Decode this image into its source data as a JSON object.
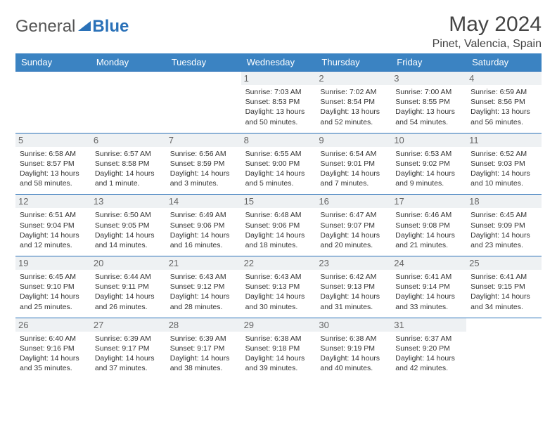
{
  "logo": {
    "part1": "General",
    "part2": "Blue"
  },
  "title": "May 2024",
  "location": "Pinet, Valencia, Spain",
  "colors": {
    "header_bg": "#3b83c2",
    "border": "#2a71b8",
    "dayshade": "#eef1f3"
  },
  "weekdays": [
    "Sunday",
    "Monday",
    "Tuesday",
    "Wednesday",
    "Thursday",
    "Friday",
    "Saturday"
  ],
  "first_weekday_index": 3,
  "days": [
    {
      "n": "1",
      "sr": "Sunrise: 7:03 AM",
      "ss": "Sunset: 8:53 PM",
      "d1": "Daylight: 13 hours",
      "d2": "and 50 minutes."
    },
    {
      "n": "2",
      "sr": "Sunrise: 7:02 AM",
      "ss": "Sunset: 8:54 PM",
      "d1": "Daylight: 13 hours",
      "d2": "and 52 minutes."
    },
    {
      "n": "3",
      "sr": "Sunrise: 7:00 AM",
      "ss": "Sunset: 8:55 PM",
      "d1": "Daylight: 13 hours",
      "d2": "and 54 minutes."
    },
    {
      "n": "4",
      "sr": "Sunrise: 6:59 AM",
      "ss": "Sunset: 8:56 PM",
      "d1": "Daylight: 13 hours",
      "d2": "and 56 minutes."
    },
    {
      "n": "5",
      "sr": "Sunrise: 6:58 AM",
      "ss": "Sunset: 8:57 PM",
      "d1": "Daylight: 13 hours",
      "d2": "and 58 minutes."
    },
    {
      "n": "6",
      "sr": "Sunrise: 6:57 AM",
      "ss": "Sunset: 8:58 PM",
      "d1": "Daylight: 14 hours",
      "d2": "and 1 minute."
    },
    {
      "n": "7",
      "sr": "Sunrise: 6:56 AM",
      "ss": "Sunset: 8:59 PM",
      "d1": "Daylight: 14 hours",
      "d2": "and 3 minutes."
    },
    {
      "n": "8",
      "sr": "Sunrise: 6:55 AM",
      "ss": "Sunset: 9:00 PM",
      "d1": "Daylight: 14 hours",
      "d2": "and 5 minutes."
    },
    {
      "n": "9",
      "sr": "Sunrise: 6:54 AM",
      "ss": "Sunset: 9:01 PM",
      "d1": "Daylight: 14 hours",
      "d2": "and 7 minutes."
    },
    {
      "n": "10",
      "sr": "Sunrise: 6:53 AM",
      "ss": "Sunset: 9:02 PM",
      "d1": "Daylight: 14 hours",
      "d2": "and 9 minutes."
    },
    {
      "n": "11",
      "sr": "Sunrise: 6:52 AM",
      "ss": "Sunset: 9:03 PM",
      "d1": "Daylight: 14 hours",
      "d2": "and 10 minutes."
    },
    {
      "n": "12",
      "sr": "Sunrise: 6:51 AM",
      "ss": "Sunset: 9:04 PM",
      "d1": "Daylight: 14 hours",
      "d2": "and 12 minutes."
    },
    {
      "n": "13",
      "sr": "Sunrise: 6:50 AM",
      "ss": "Sunset: 9:05 PM",
      "d1": "Daylight: 14 hours",
      "d2": "and 14 minutes."
    },
    {
      "n": "14",
      "sr": "Sunrise: 6:49 AM",
      "ss": "Sunset: 9:06 PM",
      "d1": "Daylight: 14 hours",
      "d2": "and 16 minutes."
    },
    {
      "n": "15",
      "sr": "Sunrise: 6:48 AM",
      "ss": "Sunset: 9:06 PM",
      "d1": "Daylight: 14 hours",
      "d2": "and 18 minutes."
    },
    {
      "n": "16",
      "sr": "Sunrise: 6:47 AM",
      "ss": "Sunset: 9:07 PM",
      "d1": "Daylight: 14 hours",
      "d2": "and 20 minutes."
    },
    {
      "n": "17",
      "sr": "Sunrise: 6:46 AM",
      "ss": "Sunset: 9:08 PM",
      "d1": "Daylight: 14 hours",
      "d2": "and 21 minutes."
    },
    {
      "n": "18",
      "sr": "Sunrise: 6:45 AM",
      "ss": "Sunset: 9:09 PM",
      "d1": "Daylight: 14 hours",
      "d2": "and 23 minutes."
    },
    {
      "n": "19",
      "sr": "Sunrise: 6:45 AM",
      "ss": "Sunset: 9:10 PM",
      "d1": "Daylight: 14 hours",
      "d2": "and 25 minutes."
    },
    {
      "n": "20",
      "sr": "Sunrise: 6:44 AM",
      "ss": "Sunset: 9:11 PM",
      "d1": "Daylight: 14 hours",
      "d2": "and 26 minutes."
    },
    {
      "n": "21",
      "sr": "Sunrise: 6:43 AM",
      "ss": "Sunset: 9:12 PM",
      "d1": "Daylight: 14 hours",
      "d2": "and 28 minutes."
    },
    {
      "n": "22",
      "sr": "Sunrise: 6:43 AM",
      "ss": "Sunset: 9:13 PM",
      "d1": "Daylight: 14 hours",
      "d2": "and 30 minutes."
    },
    {
      "n": "23",
      "sr": "Sunrise: 6:42 AM",
      "ss": "Sunset: 9:13 PM",
      "d1": "Daylight: 14 hours",
      "d2": "and 31 minutes."
    },
    {
      "n": "24",
      "sr": "Sunrise: 6:41 AM",
      "ss": "Sunset: 9:14 PM",
      "d1": "Daylight: 14 hours",
      "d2": "and 33 minutes."
    },
    {
      "n": "25",
      "sr": "Sunrise: 6:41 AM",
      "ss": "Sunset: 9:15 PM",
      "d1": "Daylight: 14 hours",
      "d2": "and 34 minutes."
    },
    {
      "n": "26",
      "sr": "Sunrise: 6:40 AM",
      "ss": "Sunset: 9:16 PM",
      "d1": "Daylight: 14 hours",
      "d2": "and 35 minutes."
    },
    {
      "n": "27",
      "sr": "Sunrise: 6:39 AM",
      "ss": "Sunset: 9:17 PM",
      "d1": "Daylight: 14 hours",
      "d2": "and 37 minutes."
    },
    {
      "n": "28",
      "sr": "Sunrise: 6:39 AM",
      "ss": "Sunset: 9:17 PM",
      "d1": "Daylight: 14 hours",
      "d2": "and 38 minutes."
    },
    {
      "n": "29",
      "sr": "Sunrise: 6:38 AM",
      "ss": "Sunset: 9:18 PM",
      "d1": "Daylight: 14 hours",
      "d2": "and 39 minutes."
    },
    {
      "n": "30",
      "sr": "Sunrise: 6:38 AM",
      "ss": "Sunset: 9:19 PM",
      "d1": "Daylight: 14 hours",
      "d2": "and 40 minutes."
    },
    {
      "n": "31",
      "sr": "Sunrise: 6:37 AM",
      "ss": "Sunset: 9:20 PM",
      "d1": "Daylight: 14 hours",
      "d2": "and 42 minutes."
    }
  ]
}
